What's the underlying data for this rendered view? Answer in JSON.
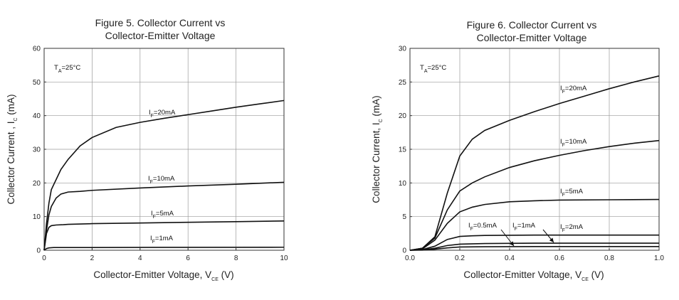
{
  "chart_data": [
    {
      "type": "line",
      "title_line1": "Figure 5. Collector Current vs",
      "title_line2": "Collector-Emitter  Voltage",
      "xlabel": "Collector-Emitter Voltage, V",
      "xlabel_sub": "CE",
      "xlabel_suffix": " (V)",
      "ylabel": "Collector Current , I",
      "ylabel_sub": "C",
      "ylabel_suffix": " (mA)",
      "xlim": [
        0,
        10
      ],
      "ylim": [
        0,
        60
      ],
      "xticks": [
        "0",
        "2",
        "4",
        "6",
        "8",
        "10"
      ],
      "yticks": [
        "0",
        "10",
        "20",
        "30",
        "40",
        "50",
        "60"
      ],
      "grid": true,
      "condition": {
        "prefix": "T",
        "sub": "A",
        "suffix": "=25°C"
      },
      "series": [
        {
          "label_prefix": "I",
          "label_sub": "F",
          "label_suffix": "=20mA",
          "x": [
            0,
            0.1,
            0.2,
            0.3,
            0.5,
            0.7,
            1.0,
            1.5,
            2,
            3,
            4,
            5,
            6,
            7,
            8,
            9,
            10
          ],
          "y": [
            0,
            8,
            14,
            18,
            21,
            24,
            27,
            31,
            33.5,
            36.5,
            38,
            39.2,
            40.3,
            41.4,
            42.5,
            43.5,
            44.5
          ]
        },
        {
          "label_prefix": "I",
          "label_sub": "F",
          "label_suffix": "=10mA",
          "x": [
            0,
            0.1,
            0.2,
            0.3,
            0.5,
            0.7,
            1.0,
            1.5,
            2,
            4,
            6,
            8,
            10
          ],
          "y": [
            0,
            6,
            10.5,
            13,
            15.5,
            16.7,
            17.3,
            17.5,
            17.8,
            18.5,
            19.1,
            19.6,
            20.2
          ]
        },
        {
          "label_prefix": "I",
          "label_sub": "F",
          "label_suffix": "=5mA",
          "x": [
            0,
            0.1,
            0.2,
            0.3,
            0.5,
            0.8,
            1.0,
            2,
            4,
            6,
            8,
            10
          ],
          "y": [
            0,
            5,
            6.8,
            7.3,
            7.5,
            7.6,
            7.7,
            7.9,
            8.1,
            8.3,
            8.5,
            8.7
          ]
        },
        {
          "label_prefix": "I",
          "label_sub": "F",
          "label_suffix": "=1mA",
          "x": [
            0,
            0.1,
            0.2,
            0.4,
            1,
            5,
            10
          ],
          "y": [
            0,
            0.5,
            0.7,
            0.8,
            0.8,
            0.85,
            0.9
          ]
        }
      ]
    },
    {
      "type": "line",
      "title_line1": "Figure 6. Collector Current vs",
      "title_line2": "Collector-Emitter Voltage",
      "xlabel": "Collector-Emitter Voltage, V",
      "xlabel_sub": "CE",
      "xlabel_suffix": " (V)",
      "ylabel": "Collector Current, I",
      "ylabel_sub": "C",
      "ylabel_suffix": " (mA)",
      "xlim": [
        0,
        1.0
      ],
      "ylim": [
        0,
        30
      ],
      "xticks": [
        "0.0",
        "0.2",
        "0.4",
        "0.6",
        "0.8",
        "1.0"
      ],
      "yticks": [
        "0",
        "5",
        "10",
        "15",
        "20",
        "25",
        "30"
      ],
      "grid": true,
      "condition": {
        "prefix": "T",
        "sub": "A",
        "suffix": "=25°C"
      },
      "series": [
        {
          "label_prefix": "I",
          "label_sub": "F",
          "label_suffix": "=20mA",
          "x": [
            0,
            0.05,
            0.1,
            0.15,
            0.2,
            0.25,
            0.3,
            0.4,
            0.5,
            0.6,
            0.7,
            0.8,
            0.9,
            1.0
          ],
          "y": [
            0,
            0.3,
            2,
            8.5,
            14,
            16.5,
            17.8,
            19.3,
            20.6,
            21.8,
            22.9,
            24,
            25,
            25.9
          ]
        },
        {
          "label_prefix": "I",
          "label_sub": "F",
          "label_suffix": "=10mA",
          "x": [
            0,
            0.05,
            0.1,
            0.15,
            0.2,
            0.25,
            0.3,
            0.4,
            0.5,
            0.6,
            0.7,
            0.8,
            0.9,
            1.0
          ],
          "y": [
            0,
            0.3,
            1.8,
            6,
            8.8,
            10,
            10.9,
            12.3,
            13.3,
            14.1,
            14.8,
            15.4,
            15.9,
            16.3
          ]
        },
        {
          "label_prefix": "I",
          "label_sub": "F",
          "label_suffix": "=5mA",
          "x": [
            0,
            0.05,
            0.1,
            0.15,
            0.2,
            0.25,
            0.3,
            0.4,
            0.5,
            0.6,
            0.8,
            1.0
          ],
          "y": [
            0,
            0.2,
            1.5,
            4,
            5.7,
            6.4,
            6.8,
            7.2,
            7.35,
            7.45,
            7.5,
            7.55
          ]
        },
        {
          "label_prefix": "I",
          "label_sub": "F",
          "label_suffix": "=2mA",
          "x": [
            0,
            0.05,
            0.1,
            0.15,
            0.2,
            0.25,
            0.3,
            0.5,
            0.7,
            1.0
          ],
          "y": [
            0,
            0.1,
            0.6,
            1.6,
            2.05,
            2.15,
            2.2,
            2.25,
            2.25,
            2.25
          ]
        },
        {
          "label_prefix": "I",
          "label_sub": "F",
          "label_suffix": "=1mA",
          "x": [
            0,
            0.05,
            0.1,
            0.15,
            0.2,
            0.3,
            0.5,
            1.0
          ],
          "y": [
            0,
            0.05,
            0.3,
            0.7,
            0.9,
            1.0,
            1.05,
            1.05
          ]
        },
        {
          "label_prefix": "I",
          "label_sub": "F",
          "label_suffix": "=0.5mA",
          "x": [
            0,
            0.05,
            0.1,
            0.15,
            0.2,
            0.3,
            0.5,
            1.0
          ],
          "y": [
            0,
            0.02,
            0.15,
            0.35,
            0.48,
            0.52,
            0.55,
            0.55
          ]
        }
      ]
    }
  ]
}
